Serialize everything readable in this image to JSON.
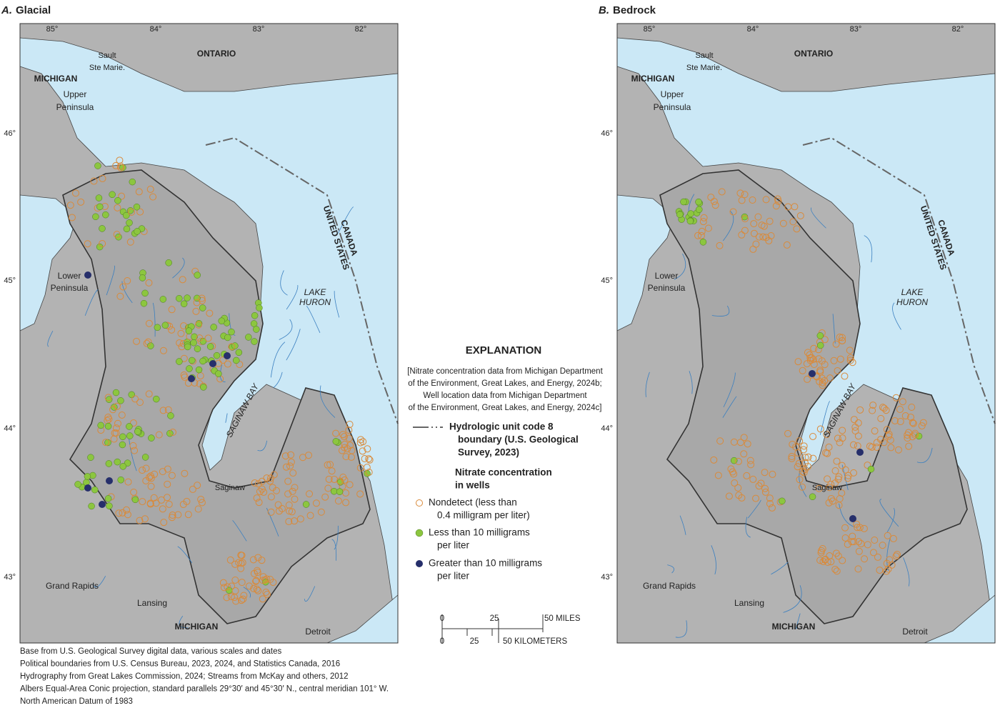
{
  "panels": [
    {
      "letter": "A.",
      "title": "Glacial",
      "longitudes": [
        "85°",
        "84°",
        "83°",
        "82°"
      ],
      "latitudes": [
        "46°",
        "45°",
        "44°",
        "43°"
      ],
      "place_labels": [
        "Sault",
        "Ste Marie.",
        "ONTARIO",
        "MICHIGAN",
        "Upper",
        "Peninsula",
        "Lower",
        "Peninsula",
        "LAKE",
        "HURON",
        "SAGINAW BAY",
        "CANADA",
        "UNITED STATES",
        "Saginaw",
        "Grand Rapids",
        "Lansing",
        "MICHIGAN",
        "Detroit"
      ]
    },
    {
      "letter": "B.",
      "title": "Bedrock",
      "longitudes": [
        "85°",
        "84°",
        "83°",
        "82°"
      ],
      "latitudes": [
        "46°",
        "45°",
        "44°",
        "43°"
      ],
      "place_labels": [
        "Sault",
        "Ste Marie.",
        "ONTARIO",
        "MICHIGAN",
        "Upper",
        "Peninsula",
        "Lower",
        "Peninsula",
        "LAKE",
        "HURON",
        "SAGINAW BAY",
        "CANADA",
        "UNITED STATES",
        "Saginaw",
        "Grand Rapids",
        "Lansing",
        "MICHIGAN",
        "Detroit"
      ]
    }
  ],
  "explanation": {
    "title": "EXPLANATION",
    "note": [
      "[Nitrate concentration data from Michigan Department",
      "of the Environment, Great Lakes, and Energy, 2024b;",
      "Well location data from Michigan Department",
      "of the Environment, Great Lakes, and Energy, 2024c]"
    ],
    "boundary": [
      "Hydrologic unit code 8",
      "boundary (U.S. Geological",
      "Survey, 2023)"
    ],
    "heading": [
      "Nitrate concentration",
      "in wells"
    ],
    "nondetect": [
      "Nondetect (less than",
      "0.4 milligram per liter)"
    ],
    "less": [
      "Less than 10 milligrams",
      "per liter"
    ],
    "greater": [
      "Greater than 10 milligrams",
      "per liter"
    ],
    "scale_miles": [
      "0",
      "25",
      "50 MILES"
    ],
    "scale_km": [
      "0",
      "25",
      "50 KILOMETERS"
    ]
  },
  "credits": [
    "Base from U.S. Geological Survey digital data, various scales and dates",
    "Political boundaries from U.S. Census Bureau, 2023, 2024, and Statistics Canada, 2016",
    "Hydrography from Great Lakes Commission, 2024; Streams from McKay and others, 2012",
    "Albers Equal-Area Conic projection, standard parallels 29°30′ and 45°30′ N., central meridian 101° W.",
    "North American Datum of 1983"
  ]
}
